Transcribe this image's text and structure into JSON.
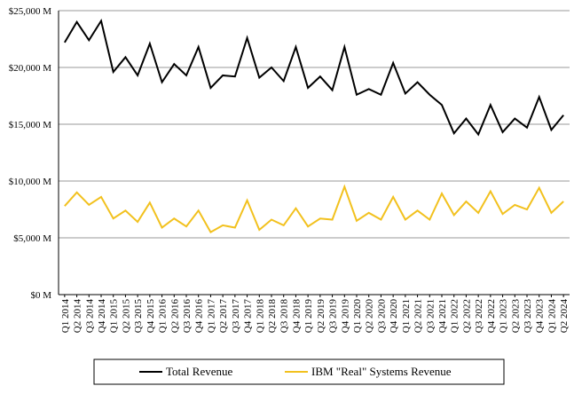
{
  "chart_data": {
    "type": "line",
    "categories": [
      "Q1 2014",
      "Q2 2014",
      "Q3 2014",
      "Q4 2014",
      "Q1 2015",
      "Q2 2015",
      "Q3 2015",
      "Q4 2015",
      "Q1 2016",
      "Q2 2016",
      "Q3 2016",
      "Q4 2016",
      "Q1 2017",
      "Q2 2017",
      "Q3 2017",
      "Q4 2017",
      "Q1 2018",
      "Q2 2018",
      "Q3 2018",
      "Q4 2018",
      "Q1 2019",
      "Q2 2019",
      "Q3 2019",
      "Q4 2019",
      "Q1 2020",
      "Q2 2020",
      "Q3 2020",
      "Q4 2020",
      "Q1 2021",
      "Q2 2021",
      "Q3 2021",
      "Q4 2021",
      "Q1 2022",
      "Q2 2022",
      "Q3 2022",
      "Q4 2022",
      "Q1 2023",
      "Q2 2023",
      "Q3 2023",
      "Q4 2023",
      "Q1 2024",
      "Q2 2024"
    ],
    "series": [
      {
        "name": "Total Revenue",
        "color": "#000000",
        "values": [
          22200,
          24000,
          22400,
          24100,
          19600,
          20900,
          19300,
          22100,
          18700,
          20300,
          19300,
          21800,
          18200,
          19300,
          19200,
          22600,
          19100,
          20000,
          18800,
          21800,
          18200,
          19200,
          18000,
          21800,
          17600,
          18100,
          17600,
          20400,
          17700,
          18700,
          17600,
          16700,
          14200,
          15500,
          14100,
          16700,
          14300,
          15500,
          14700,
          17400,
          14500,
          15800
        ]
      },
      {
        "name": "IBM \"Real\" Systems Revenue",
        "color": "#F2C11E",
        "values": [
          7800,
          9000,
          7900,
          8600,
          6700,
          7400,
          6400,
          8100,
          5900,
          6700,
          6000,
          7400,
          5500,
          6100,
          5900,
          8300,
          5700,
          6600,
          6100,
          7600,
          6000,
          6700,
          6600,
          9500,
          6500,
          7200,
          6600,
          8600,
          6600,
          7400,
          6600,
          8900,
          7000,
          8200,
          7200,
          9100,
          7100,
          7900,
          7500,
          9400,
          7200,
          8200
        ]
      }
    ],
    "ylim": [
      0,
      25000
    ],
    "y_ticks": [
      0,
      5000,
      10000,
      15000,
      20000,
      25000
    ],
    "y_tick_labels": [
      "$0 M",
      "$5,000 M",
      "$10,000 M",
      "$15,000 M",
      "$20,000 M",
      "$25,000 M"
    ],
    "grid": true,
    "legend_position": "bottom",
    "title": "",
    "xlabel": "",
    "ylabel": ""
  }
}
